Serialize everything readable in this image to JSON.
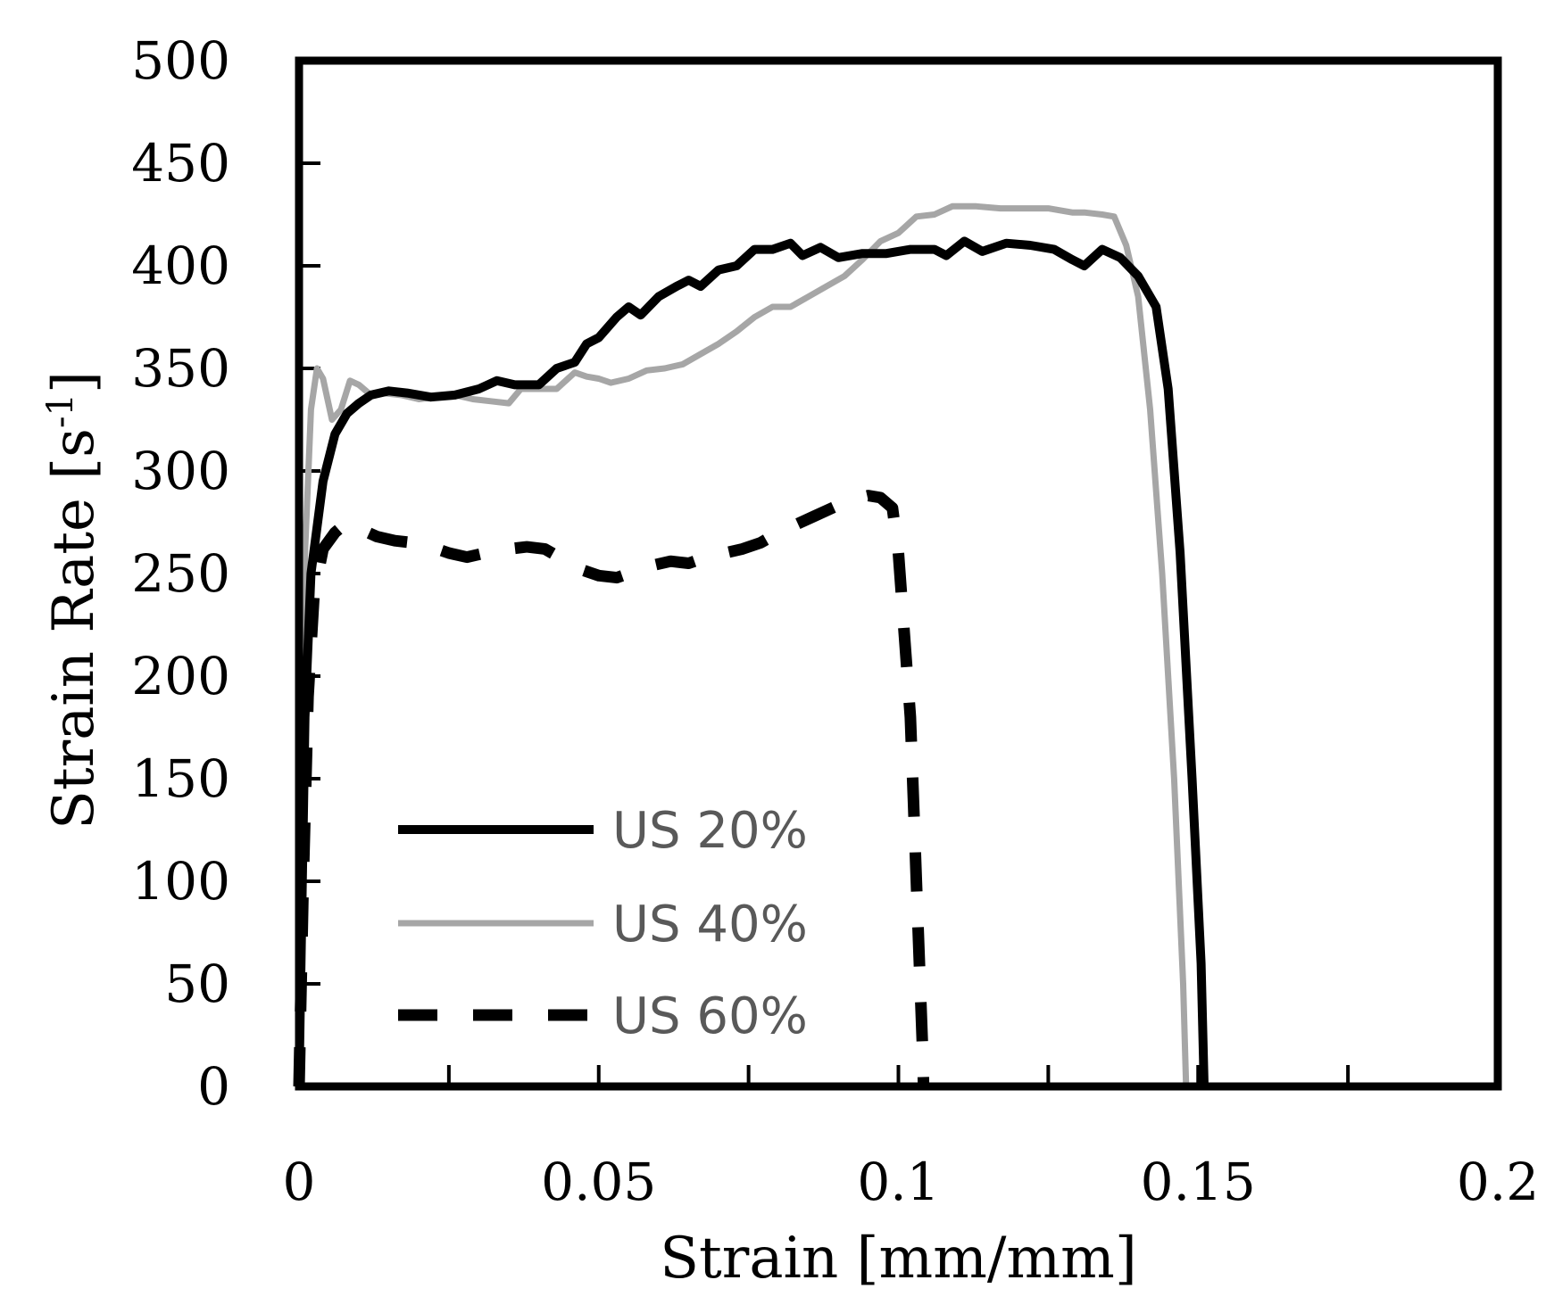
{
  "chart_data": {
    "type": "line",
    "xlabel": "Strain [mm/mm]",
    "ylabel": "Strain Rate [s-1]",
    "ylabel_parts": {
      "base": "Strain Rate [s",
      "sup": "-1",
      "close": "]"
    },
    "xlim": [
      0,
      0.2
    ],
    "ylim": [
      0,
      500
    ],
    "x_ticks": [
      0,
      0.05,
      0.1,
      0.15,
      0.2
    ],
    "x_tick_labels": [
      "0",
      "0.05",
      "0.1",
      "0.15",
      "0.2"
    ],
    "x_minor_ticks": [
      0.025,
      0.075,
      0.125,
      0.175
    ],
    "y_ticks": [
      0,
      50,
      100,
      150,
      200,
      250,
      300,
      350,
      400,
      450,
      500
    ],
    "y_tick_labels": [
      "0",
      "50",
      "100",
      "150",
      "200",
      "250",
      "300",
      "350",
      "400",
      "450",
      "500"
    ],
    "grid": false,
    "legend_position": "bottom-left",
    "series": [
      {
        "name": "US 20%",
        "color": "#000000",
        "style": "solid",
        "points": [
          [
            0,
            0
          ],
          [
            0.001,
            180
          ],
          [
            0.002,
            250
          ],
          [
            0.004,
            295
          ],
          [
            0.006,
            318
          ],
          [
            0.008,
            328
          ],
          [
            0.01,
            333
          ],
          [
            0.012,
            337
          ],
          [
            0.015,
            339
          ],
          [
            0.018,
            338
          ],
          [
            0.022,
            336
          ],
          [
            0.026,
            337
          ],
          [
            0.03,
            340
          ],
          [
            0.033,
            344
          ],
          [
            0.036,
            342
          ],
          [
            0.04,
            342
          ],
          [
            0.043,
            350
          ],
          [
            0.046,
            353
          ],
          [
            0.048,
            362
          ],
          [
            0.05,
            365
          ],
          [
            0.053,
            375
          ],
          [
            0.055,
            380
          ],
          [
            0.057,
            376
          ],
          [
            0.06,
            385
          ],
          [
            0.063,
            390
          ],
          [
            0.065,
            393
          ],
          [
            0.067,
            390
          ],
          [
            0.07,
            398
          ],
          [
            0.073,
            400
          ],
          [
            0.076,
            408
          ],
          [
            0.079,
            408
          ],
          [
            0.082,
            411
          ],
          [
            0.084,
            405
          ],
          [
            0.087,
            409
          ],
          [
            0.09,
            404
          ],
          [
            0.094,
            406
          ],
          [
            0.098,
            406
          ],
          [
            0.102,
            408
          ],
          [
            0.106,
            408
          ],
          [
            0.108,
            405
          ],
          [
            0.111,
            412
          ],
          [
            0.114,
            407
          ],
          [
            0.118,
            411
          ],
          [
            0.122,
            410
          ],
          [
            0.126,
            408
          ],
          [
            0.129,
            403
          ],
          [
            0.131,
            400
          ],
          [
            0.134,
            408
          ],
          [
            0.137,
            404
          ],
          [
            0.14,
            395
          ],
          [
            0.143,
            380
          ],
          [
            0.145,
            340
          ],
          [
            0.147,
            260
          ],
          [
            0.149,
            150
          ],
          [
            0.1505,
            60
          ],
          [
            0.151,
            0
          ]
        ]
      },
      {
        "name": "US 40%",
        "color": "#a6a6a6",
        "style": "solid",
        "points": [
          [
            0,
            0
          ],
          [
            0.0005,
            150
          ],
          [
            0.001,
            260
          ],
          [
            0.002,
            330
          ],
          [
            0.003,
            350
          ],
          [
            0.004,
            345
          ],
          [
            0.0055,
            325
          ],
          [
            0.007,
            330
          ],
          [
            0.0085,
            344
          ],
          [
            0.01,
            342
          ],
          [
            0.012,
            337
          ],
          [
            0.014,
            338
          ],
          [
            0.017,
            337
          ],
          [
            0.02,
            335
          ],
          [
            0.023,
            336
          ],
          [
            0.026,
            337
          ],
          [
            0.029,
            335
          ],
          [
            0.032,
            334
          ],
          [
            0.035,
            333
          ],
          [
            0.037,
            340
          ],
          [
            0.04,
            340
          ],
          [
            0.043,
            340
          ],
          [
            0.046,
            348
          ],
          [
            0.048,
            346
          ],
          [
            0.05,
            345
          ],
          [
            0.052,
            343
          ],
          [
            0.055,
            345
          ],
          [
            0.058,
            349
          ],
          [
            0.061,
            350
          ],
          [
            0.064,
            352
          ],
          [
            0.067,
            357
          ],
          [
            0.07,
            362
          ],
          [
            0.073,
            368
          ],
          [
            0.076,
            375
          ],
          [
            0.079,
            380
          ],
          [
            0.082,
            380
          ],
          [
            0.085,
            385
          ],
          [
            0.088,
            390
          ],
          [
            0.091,
            395
          ],
          [
            0.094,
            403
          ],
          [
            0.097,
            412
          ],
          [
            0.1,
            416
          ],
          [
            0.103,
            424
          ],
          [
            0.106,
            425
          ],
          [
            0.109,
            429
          ],
          [
            0.113,
            429
          ],
          [
            0.117,
            428
          ],
          [
            0.121,
            428
          ],
          [
            0.125,
            428
          ],
          [
            0.129,
            426
          ],
          [
            0.131,
            426
          ],
          [
            0.134,
            425
          ],
          [
            0.136,
            424
          ],
          [
            0.138,
            410
          ],
          [
            0.14,
            385
          ],
          [
            0.142,
            330
          ],
          [
            0.144,
            250
          ],
          [
            0.146,
            150
          ],
          [
            0.1475,
            50
          ],
          [
            0.148,
            0
          ]
        ]
      },
      {
        "name": "US 60%",
        "color": "#000000",
        "style": "dashed",
        "points": [
          [
            0,
            0
          ],
          [
            0.0007,
            100
          ],
          [
            0.0015,
            190
          ],
          [
            0.0025,
            240
          ],
          [
            0.004,
            262
          ],
          [
            0.006,
            270
          ],
          [
            0.008,
            275
          ],
          [
            0.01,
            272
          ],
          [
            0.013,
            268
          ],
          [
            0.016,
            266
          ],
          [
            0.019,
            265
          ],
          [
            0.022,
            263
          ],
          [
            0.025,
            260
          ],
          [
            0.028,
            258
          ],
          [
            0.031,
            260
          ],
          [
            0.035,
            262
          ],
          [
            0.038,
            263
          ],
          [
            0.041,
            262
          ],
          [
            0.044,
            257
          ],
          [
            0.047,
            252
          ],
          [
            0.05,
            249
          ],
          [
            0.053,
            248
          ],
          [
            0.056,
            251
          ],
          [
            0.059,
            254
          ],
          [
            0.062,
            256
          ],
          [
            0.065,
            255
          ],
          [
            0.068,
            258
          ],
          [
            0.071,
            260
          ],
          [
            0.074,
            262
          ],
          [
            0.077,
            265
          ],
          [
            0.08,
            270
          ],
          [
            0.083,
            274
          ],
          [
            0.086,
            278
          ],
          [
            0.089,
            282
          ],
          [
            0.092,
            286
          ],
          [
            0.095,
            288
          ],
          [
            0.097,
            287
          ],
          [
            0.099,
            282
          ],
          [
            0.1,
            260
          ],
          [
            0.101,
            220
          ],
          [
            0.102,
            180
          ],
          [
            0.1025,
            140
          ],
          [
            0.103,
            100
          ],
          [
            0.1035,
            60
          ],
          [
            0.104,
            20
          ],
          [
            0.1042,
            0
          ]
        ]
      }
    ]
  }
}
